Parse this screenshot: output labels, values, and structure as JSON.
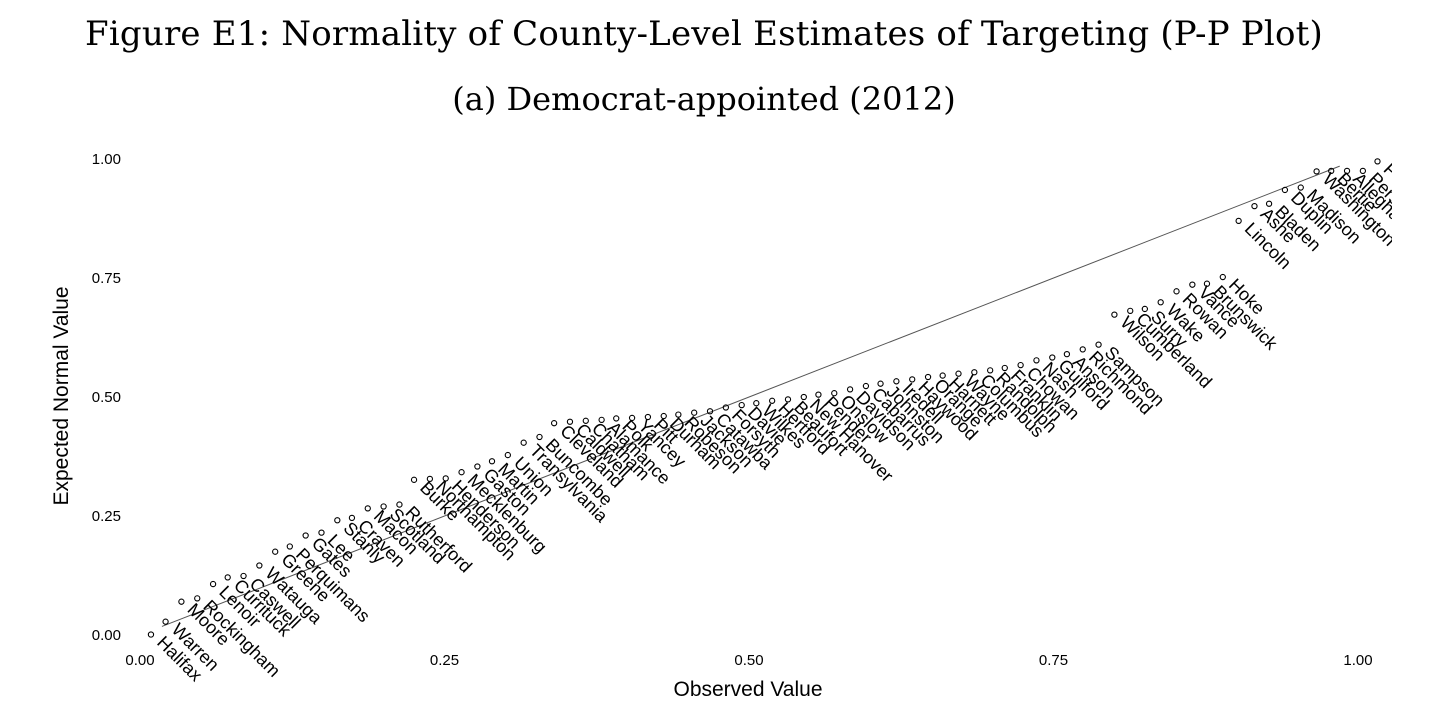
{
  "figure": {
    "title": "Figure E1: Normality of County-Level Estimates of Targeting (P-P Plot)",
    "subtitle": "(a) Democrat-appointed (2012)"
  },
  "chart_data": {
    "type": "scatter",
    "xlabel": "Observed Value",
    "ylabel": "Expected Normal Value",
    "xlim": [
      0,
      1
    ],
    "ylim": [
      0,
      1
    ],
    "x_ticks": [
      "0.00",
      "0.25",
      "0.50",
      "0.75",
      "1.00"
    ],
    "y_ticks": [
      "0.00",
      "0.25",
      "0.50",
      "0.75",
      "1.00"
    ],
    "reference_line": "diagonal",
    "grid": false,
    "marker": "hollow circle",
    "points": [
      {
        "label": "Halifax",
        "x": 0.009,
        "y": 0.001
      },
      {
        "label": "Warren",
        "x": 0.021,
        "y": 0.028
      },
      {
        "label": "Moore",
        "x": 0.034,
        "y": 0.07
      },
      {
        "label": "Rockingham",
        "x": 0.047,
        "y": 0.077
      },
      {
        "label": "Lenoir",
        "x": 0.06,
        "y": 0.107
      },
      {
        "label": "Currituck",
        "x": 0.072,
        "y": 0.121
      },
      {
        "label": "Caswell",
        "x": 0.085,
        "y": 0.124
      },
      {
        "label": "Watauga",
        "x": 0.098,
        "y": 0.146
      },
      {
        "label": "Greene",
        "x": 0.111,
        "y": 0.175
      },
      {
        "label": "Perquimans",
        "x": 0.123,
        "y": 0.186
      },
      {
        "label": "Gates",
        "x": 0.136,
        "y": 0.209
      },
      {
        "label": "Lee",
        "x": 0.149,
        "y": 0.215
      },
      {
        "label": "Stanly",
        "x": 0.162,
        "y": 0.241
      },
      {
        "label": "Craven",
        "x": 0.174,
        "y": 0.246
      },
      {
        "label": "Macon",
        "x": 0.187,
        "y": 0.266
      },
      {
        "label": "Scotland",
        "x": 0.2,
        "y": 0.27
      },
      {
        "label": "Rutherford",
        "x": 0.213,
        "y": 0.274
      },
      {
        "label": "Burke",
        "x": 0.225,
        "y": 0.326
      },
      {
        "label": "Northampton",
        "x": 0.238,
        "y": 0.328
      },
      {
        "label": "Henderson",
        "x": 0.251,
        "y": 0.329
      },
      {
        "label": "Mecklenburg",
        "x": 0.264,
        "y": 0.342
      },
      {
        "label": "Gaston",
        "x": 0.277,
        "y": 0.354
      },
      {
        "label": "Martin",
        "x": 0.289,
        "y": 0.365
      },
      {
        "label": "Union",
        "x": 0.302,
        "y": 0.378
      },
      {
        "label": "Transylvania",
        "x": 0.315,
        "y": 0.404
      },
      {
        "label": "Buncombe",
        "x": 0.328,
        "y": 0.416
      },
      {
        "label": "Cleveland",
        "x": 0.34,
        "y": 0.445
      },
      {
        "label": "Caldwell",
        "x": 0.353,
        "y": 0.448
      },
      {
        "label": "Chatham",
        "x": 0.366,
        "y": 0.45
      },
      {
        "label": "Alamance",
        "x": 0.379,
        "y": 0.452
      },
      {
        "label": "Polk",
        "x": 0.391,
        "y": 0.455
      },
      {
        "label": "Yancey",
        "x": 0.404,
        "y": 0.456
      },
      {
        "label": "Pitt",
        "x": 0.417,
        "y": 0.458
      },
      {
        "label": "Durham",
        "x": 0.43,
        "y": 0.46
      },
      {
        "label": "Robeson",
        "x": 0.442,
        "y": 0.463
      },
      {
        "label": "Jackson",
        "x": 0.455,
        "y": 0.467
      },
      {
        "label": "Catawba",
        "x": 0.468,
        "y": 0.47
      },
      {
        "label": "Forsyth",
        "x": 0.481,
        "y": 0.478
      },
      {
        "label": "Davie",
        "x": 0.494,
        "y": 0.483
      },
      {
        "label": "Wilkes",
        "x": 0.506,
        "y": 0.487
      },
      {
        "label": "Hertford",
        "x": 0.519,
        "y": 0.492
      },
      {
        "label": "Beaufort",
        "x": 0.532,
        "y": 0.495
      },
      {
        "label": "New Hanover",
        "x": 0.545,
        "y": 0.5
      },
      {
        "label": "Pender",
        "x": 0.557,
        "y": 0.505
      },
      {
        "label": "Onslow",
        "x": 0.57,
        "y": 0.508
      },
      {
        "label": "Davidson",
        "x": 0.583,
        "y": 0.516
      },
      {
        "label": "Cabarrus",
        "x": 0.596,
        "y": 0.523
      },
      {
        "label": "Johnston",
        "x": 0.608,
        "y": 0.528
      },
      {
        "label": "Iredell",
        "x": 0.621,
        "y": 0.533
      },
      {
        "label": "Haywood",
        "x": 0.634,
        "y": 0.537
      },
      {
        "label": "Orange",
        "x": 0.647,
        "y": 0.542
      },
      {
        "label": "Harnett",
        "x": 0.659,
        "y": 0.545
      },
      {
        "label": "Wayne",
        "x": 0.672,
        "y": 0.549
      },
      {
        "label": "Columbus",
        "x": 0.685,
        "y": 0.552
      },
      {
        "label": "Randolph",
        "x": 0.698,
        "y": 0.556
      },
      {
        "label": "Franklin",
        "x": 0.71,
        "y": 0.561
      },
      {
        "label": "Chowan",
        "x": 0.723,
        "y": 0.567
      },
      {
        "label": "Nash",
        "x": 0.736,
        "y": 0.577
      },
      {
        "label": "Guilford",
        "x": 0.749,
        "y": 0.583
      },
      {
        "label": "Anson",
        "x": 0.761,
        "y": 0.59
      },
      {
        "label": "Richmond",
        "x": 0.774,
        "y": 0.6
      },
      {
        "label": "Sampson",
        "x": 0.787,
        "y": 0.61
      },
      {
        "label": "Wilson",
        "x": 0.8,
        "y": 0.673
      },
      {
        "label": "Cumberland",
        "x": 0.813,
        "y": 0.681
      },
      {
        "label": "Surry",
        "x": 0.825,
        "y": 0.685
      },
      {
        "label": "Wake",
        "x": 0.838,
        "y": 0.699
      },
      {
        "label": "Rowan",
        "x": 0.851,
        "y": 0.722
      },
      {
        "label": "Vance",
        "x": 0.864,
        "y": 0.736
      },
      {
        "label": "Brunswick",
        "x": 0.876,
        "y": 0.738
      },
      {
        "label": "Hoke",
        "x": 0.889,
        "y": 0.752
      },
      {
        "label": "Lincoln",
        "x": 0.902,
        "y": 0.87
      },
      {
        "label": "Ashe",
        "x": 0.915,
        "y": 0.901
      },
      {
        "label": "Bladen",
        "x": 0.927,
        "y": 0.906
      },
      {
        "label": "Duplin",
        "x": 0.94,
        "y": 0.935
      },
      {
        "label": "Madison",
        "x": 0.953,
        "y": 0.94
      },
      {
        "label": "Washington",
        "x": 0.966,
        "y": 0.974
      },
      {
        "label": "Bertie",
        "x": 0.978,
        "y": 0.975
      },
      {
        "label": "Alleghany",
        "x": 0.991,
        "y": 0.975
      },
      {
        "label": "Person",
        "x": 1.004,
        "y": 0.975
      },
      {
        "label": "Pasquotank",
        "x": 1.016,
        "y": 0.995
      }
    ]
  }
}
